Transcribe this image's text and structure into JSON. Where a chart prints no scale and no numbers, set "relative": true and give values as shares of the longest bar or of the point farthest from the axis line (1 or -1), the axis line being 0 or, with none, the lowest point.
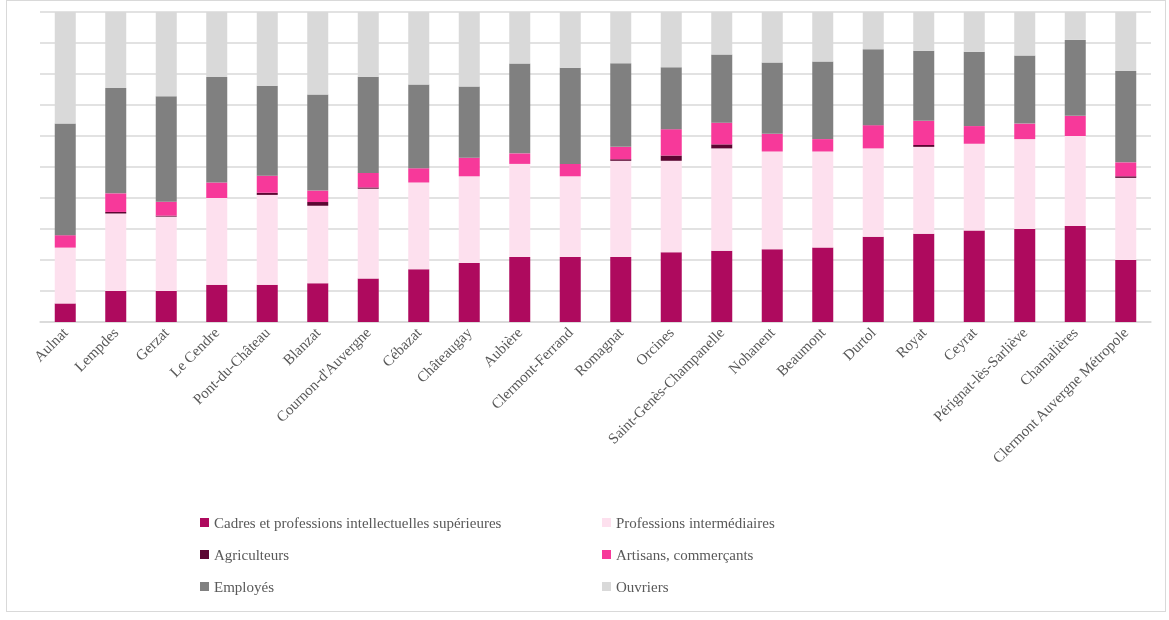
{
  "chart_data": {
    "type": "bar",
    "stacked": true,
    "relative": true,
    "grid": "y",
    "legend": "bottom",
    "categories": [
      "Aulnat",
      "Lempdes",
      "Gerzat",
      "Le Cendre",
      "Pont-du-Château",
      "Blanzat",
      "Cournon-d'Auvergne",
      "Cébazat",
      "Châteaugay",
      "Aubière",
      "Clermont-Ferrand",
      "Romagnat",
      "Orcines",
      "Saint-Genès-Champanelle",
      "Nohanent",
      "Beaumont",
      "Durtol",
      "Royat",
      "Ceyrat",
      "Pérignat-lès-Sarliève",
      "Chamalières",
      "Clermont Auvergne Métropole"
    ],
    "series": [
      {
        "name": "Cadres et professions intellectuelles supérieures",
        "color": "#ae0a5e",
        "values": [
          0.06,
          0.1,
          0.1,
          0.12,
          0.12,
          0.125,
          0.14,
          0.17,
          0.19,
          0.21,
          0.21,
          0.21,
          0.225,
          0.23,
          0.235,
          0.24,
          0.275,
          0.285,
          0.295,
          0.3,
          0.31,
          0.2
        ]
      },
      {
        "name": "Professions intermédiaires",
        "color": "#fde0ee",
        "values": [
          0.18,
          0.25,
          0.24,
          0.28,
          0.29,
          0.25,
          0.29,
          0.28,
          0.28,
          0.3,
          0.26,
          0.31,
          0.295,
          0.33,
          0.315,
          0.31,
          0.285,
          0.28,
          0.28,
          0.29,
          0.29,
          0.265
        ]
      },
      {
        "name": "Agriculteurs",
        "color": "#5c0632",
        "values": [
          0,
          0.005,
          0.003,
          0,
          0.007,
          0.012,
          0.004,
          0,
          0,
          0,
          0,
          0.005,
          0.017,
          0.013,
          0,
          0,
          0,
          0.006,
          0,
          0,
          0,
          0.005
        ]
      },
      {
        "name": "Artisans, commerçants",
        "color": "#f7399a",
        "values": [
          0.04,
          0.06,
          0.045,
          0.05,
          0.055,
          0.037,
          0.047,
          0.046,
          0.06,
          0.034,
          0.04,
          0.04,
          0.085,
          0.07,
          0.057,
          0.04,
          0.075,
          0.078,
          0.057,
          0.05,
          0.065,
          0.045
        ]
      },
      {
        "name": "Employés",
        "color": "#808080",
        "values": [
          0.36,
          0.34,
          0.34,
          0.34,
          0.29,
          0.31,
          0.31,
          0.27,
          0.23,
          0.29,
          0.31,
          0.27,
          0.2,
          0.22,
          0.23,
          0.25,
          0.245,
          0.226,
          0.24,
          0.22,
          0.245,
          0.295
        ]
      },
      {
        "name": "Ouvriers",
        "color": "#d9d9d9",
        "values": [
          0.36,
          0.245,
          0.272,
          0.21,
          0.238,
          0.266,
          0.209,
          0.234,
          0.24,
          0.166,
          0.18,
          0.165,
          0.178,
          0.137,
          0.163,
          0.16,
          0.12,
          0.125,
          0.128,
          0.14,
          0.09,
          0.19
        ]
      }
    ]
  }
}
